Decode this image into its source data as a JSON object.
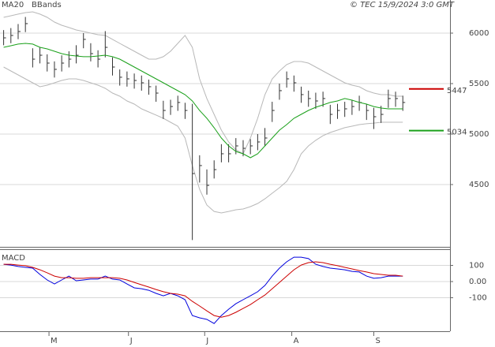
{
  "chart_data": [
    {
      "type": "ohlc",
      "annotation": "© TEC 15/9/2024 3:0 GMT",
      "ylim": [
        3883,
        6328
      ],
      "yticks": [
        {
          "value": 6000,
          "label": "6000"
        },
        {
          "value": 5500,
          "label": "5500"
        },
        {
          "value": 5000,
          "label": "5000"
        },
        {
          "value": 4500,
          "label": "4500"
        }
      ],
      "xlim": [
        -0.5,
        61.5
      ],
      "xticks": [
        {
          "value": 6.25,
          "label": "M"
        },
        {
          "value": 17.2,
          "label": "J"
        },
        {
          "value": 27.7,
          "label": "J"
        },
        {
          "value": 39.7,
          "label": "A"
        },
        {
          "value": 51.0,
          "label": "S"
        }
      ],
      "bar_color": "#333333",
      "grid": true,
      "high": [
        6030,
        6050,
        6090,
        6160,
        5850,
        5860,
        5790,
        5720,
        5780,
        5820,
        5880,
        6000,
        5900,
        5830,
        6020,
        5760,
        5640,
        5620,
        5600,
        5580,
        5540,
        5480,
        5330,
        5340,
        5380,
        5310,
        5300,
        4790,
        4650,
        4740,
        4900,
        4900,
        4960,
        4940,
        4950,
        5000,
        5060,
        5320,
        5500,
        5620,
        5580,
        5470,
        5430,
        5410,
        5420,
        5290,
        5300,
        5320,
        5340,
        5380,
        5300,
        5260,
        5280,
        5440,
        5420,
        5380
      ],
      "low": [
        5880,
        5900,
        5940,
        6010,
        5660,
        5700,
        5620,
        5560,
        5620,
        5660,
        5700,
        5850,
        5720,
        5660,
        5760,
        5580,
        5480,
        5470,
        5450,
        5430,
        5390,
        5320,
        5150,
        5190,
        5230,
        5150,
        3950,
        4520,
        4400,
        4560,
        4720,
        4720,
        4800,
        4780,
        4800,
        4840,
        4880,
        5120,
        5340,
        5460,
        5420,
        5310,
        5270,
        5250,
        5270,
        5100,
        5150,
        5170,
        5190,
        5230,
        5140,
        5050,
        5110,
        5260,
        5270,
        5230
      ],
      "close": [
        5953,
        5977,
        6016,
        6094,
        5742,
        5781,
        5703,
        5641,
        5703,
        5742,
        5781,
        5938,
        5797,
        5742,
        5859,
        5664,
        5563,
        5547,
        5531,
        5508,
        5469,
        5406,
        5234,
        5273,
        5313,
        5234,
        4609,
        4688,
        4492,
        4648,
        4805,
        4805,
        4883,
        4859,
        4883,
        4922,
        4961,
        5234,
        5430,
        5547,
        5508,
        5391,
        5352,
        5328,
        5352,
        5195,
        5234,
        5250,
        5273,
        5313,
        5234,
        5172,
        5195,
        5352,
        5352,
        5313
      ],
      "series": [
        {
          "name": "MA20",
          "color": "#1aa01a",
          "values": [
            5859,
            5875,
            5891,
            5898,
            5891,
            5859,
            5844,
            5820,
            5797,
            5781,
            5773,
            5766,
            5766,
            5773,
            5781,
            5766,
            5742,
            5703,
            5664,
            5625,
            5586,
            5547,
            5508,
            5469,
            5430,
            5391,
            5328,
            5234,
            5156,
            5063,
            4961,
            4883,
            4828,
            4805,
            4766,
            4805,
            4883,
            4961,
            5039,
            5094,
            5156,
            5195,
            5234,
            5266,
            5289,
            5313,
            5328,
            5352,
            5336,
            5313,
            5297,
            5273,
            5258,
            5250,
            5250,
            5250
          ]
        },
        {
          "name": "BBands",
          "color": "#b8b8b8",
          "upper": [
            6156,
            6172,
            6188,
            6203,
            6211,
            6188,
            6156,
            6109,
            6078,
            6055,
            6031,
            6016,
            6000,
            5984,
            5977,
            5938,
            5898,
            5859,
            5820,
            5781,
            5742,
            5742,
            5766,
            5820,
            5898,
            5977,
            5859,
            5547,
            5352,
            5195,
            5039,
            4922,
            4844,
            4805,
            4961,
            5156,
            5391,
            5547,
            5625,
            5688,
            5719,
            5719,
            5703,
            5664,
            5625,
            5586,
            5547,
            5508,
            5484,
            5469,
            5430,
            5406,
            5391,
            5391,
            5375,
            5375
          ],
          "lower": [
            5664,
            5625,
            5586,
            5547,
            5508,
            5469,
            5484,
            5508,
            5531,
            5547,
            5547,
            5531,
            5508,
            5484,
            5453,
            5406,
            5375,
            5328,
            5297,
            5250,
            5219,
            5188,
            5156,
            5117,
            5078,
            4961,
            4688,
            4453,
            4297,
            4234,
            4219,
            4234,
            4250,
            4258,
            4281,
            4313,
            4359,
            4414,
            4469,
            4531,
            4648,
            4805,
            4883,
            4938,
            4984,
            5016,
            5039,
            5063,
            5078,
            5094,
            5102,
            5109,
            5117,
            5117,
            5117,
            5117
          ]
        }
      ],
      "levels": [
        {
          "value": 5447,
          "color": "#cc0000"
        },
        {
          "value": 5034,
          "color": "#1aa01a"
        }
      ]
    },
    {
      "type": "macd",
      "title": "MACD",
      "ylim": [
        -307,
        200
      ],
      "yticks": [
        100,
        {
          "value": 0,
          "label": "0.00"
        },
        -100
      ],
      "grid": true,
      "series": [
        {
          "color": "#0000dd",
          "values": [
            107,
            102,
            93,
            88,
            83,
            44,
            10,
            -15,
            10,
            34,
            5,
            10,
            15,
            15,
            34,
            15,
            10,
            -15,
            -39,
            -44,
            -54,
            -73,
            -88,
            -73,
            -88,
            -112,
            -210,
            -224,
            -234,
            -259,
            -210,
            -171,
            -137,
            -112,
            -88,
            -63,
            -24,
            34,
            83,
            122,
            151,
            151,
            142,
            107,
            93,
            83,
            78,
            73,
            63,
            59,
            34,
            20,
            24,
            34,
            34,
            34
          ]
        },
        {
          "color": "#cc0000",
          "values": [
            107,
            107,
            102,
            98,
            88,
            73,
            54,
            34,
            24,
            24,
            20,
            20,
            24,
            24,
            24,
            24,
            20,
            10,
            -5,
            -20,
            -34,
            -49,
            -63,
            -73,
            -78,
            -88,
            -122,
            -151,
            -181,
            -210,
            -220,
            -210,
            -190,
            -166,
            -142,
            -112,
            -83,
            -44,
            -5,
            34,
            73,
            102,
            117,
            122,
            117,
            107,
            98,
            88,
            78,
            68,
            59,
            49,
            44,
            39,
            39,
            34
          ]
        }
      ]
    }
  ]
}
